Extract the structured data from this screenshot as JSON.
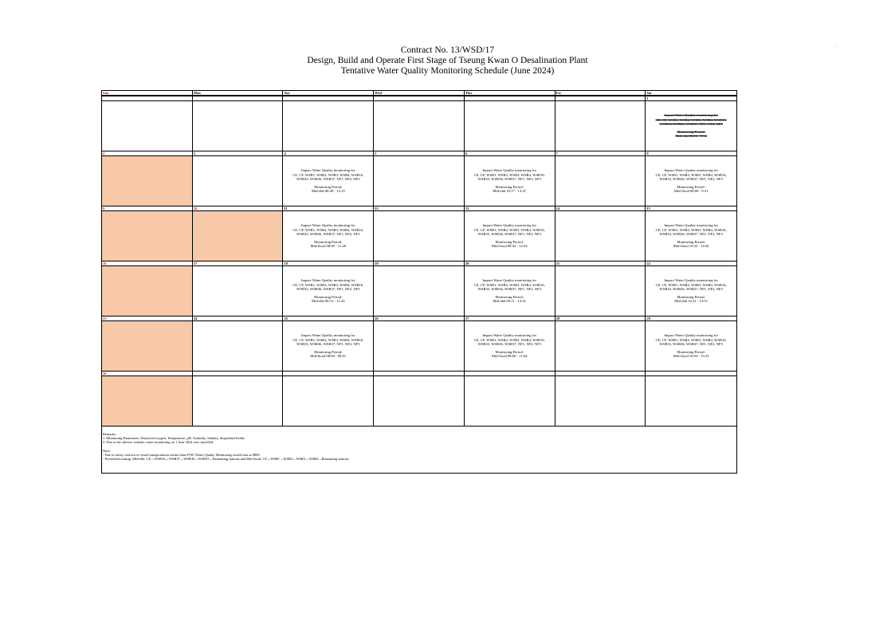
{
  "header": {
    "contract": "Contract No. 13/WSD/17",
    "project": "Design, Build and Operate First Stage of Tseung Kwan O Desalination Plant",
    "schedule_title": "Tentative Water Quality Monitoring Schedule (June 2024)"
  },
  "days": [
    "Sun",
    "Mon",
    "Tue",
    "Wed",
    "Thu",
    "Fri",
    "Sat"
  ],
  "colors": {
    "holiday_fill": "#f7c9a9",
    "holiday_text": "#e00000"
  },
  "monitoring_label": "Impact Water Quality monitoring for",
  "stations_line1": "CE, CF, WSR1, WSR2, WSR3, WSR4, WSR16,",
  "stations_line2": "WSR33, WSR36, WSR37, NF1, NF2, NF3",
  "period_label": "Monitoring Period:",
  "weeks": [
    [
      {
        "d": ""
      },
      {
        "d": ""
      },
      {
        "d": ""
      },
      {
        "d": ""
      },
      {
        "d": ""
      },
      {
        "d": ""
      },
      {
        "d": "1",
        "period": "Mid-ebb 08:00 - 9:54",
        "cancelled": true
      }
    ],
    [
      {
        "d": "2",
        "holiday": true
      },
      {
        "d": "3"
      },
      {
        "d": "4",
        "period": "Mid-ebb 08:49 - 12:19"
      },
      {
        "d": "5"
      },
      {
        "d": "6",
        "period": "Mid-ebb 10:17 - 13:47"
      },
      {
        "d": "7"
      },
      {
        "d": "8",
        "period": "Mid-flood 08:00 - 9:31"
      }
    ],
    [
      {
        "d": "9",
        "holiday": true
      },
      {
        "d": "10",
        "holiday": true
      },
      {
        "d": "11",
        "period": "Mid-flood 08:00 - 11:20"
      },
      {
        "d": "12"
      },
      {
        "d": "13",
        "period": "Mid-flood 08:54 - 12:24"
      },
      {
        "d": "14"
      },
      {
        "d": "15",
        "period": "Mid-flood 10:32 - 14:02"
      }
    ],
    [
      {
        "d": "16",
        "holiday": true
      },
      {
        "d": "17"
      },
      {
        "d": "18",
        "period": "Mid-ebb 08:13 - 11:43"
      },
      {
        "d": "19"
      },
      {
        "d": "20",
        "period": "Mid-ebb 09:11 - 12:41"
      },
      {
        "d": "21"
      },
      {
        "d": "22",
        "period": "Mid-ebb 10:21 - 13:51"
      }
    ],
    [
      {
        "d": "23",
        "holiday": true
      },
      {
        "d": "24"
      },
      {
        "d": "25",
        "period": "Mid-flood 08:00 - 09:01"
      },
      {
        "d": "26"
      },
      {
        "d": "27",
        "period": "Mid-flood 08:00 - 11:04"
      },
      {
        "d": "28"
      },
      {
        "d": "29",
        "period": "Mid-flood 10:03 - 13:33"
      }
    ],
    [
      {
        "d": "30",
        "holiday": true
      },
      {
        "d": ""
      },
      {
        "d": ""
      },
      {
        "d": ""
      },
      {
        "d": ""
      },
      {
        "d": ""
      },
      {
        "d": ""
      }
    ]
  ],
  "remarks": {
    "title": "Remarks:",
    "items": [
      "1. Monitoring Parameters: Dissolved oxygen, Temperature, pH, Turbidity, Salinity, Suspended Solids",
      "2. Due to the adverse weather, water monitoring on 1 June 2024 was cancelled."
    ],
    "note_title": "Note:",
    "notes": [
      "- Due to safety concern of vessel transportation earlier than 0700, Water Quality Monitoring would start at 0800.",
      "- Prioritized routing: Mid-ebb: CE→WSR16→WSR37→WSR36→WSR33→Remaining stations and Mid-flood: CF→WSR1→WSR2→WSR3→WSR4→Remaining stations"
    ]
  }
}
